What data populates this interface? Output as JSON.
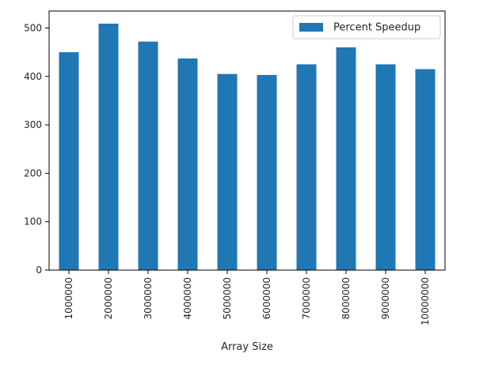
{
  "chart_data": {
    "type": "bar",
    "categories": [
      "1000000",
      "2000000",
      "3000000",
      "4000000",
      "5000000",
      "6000000",
      "7000000",
      "8000000",
      "9000000",
      "10000000"
    ],
    "series": [
      {
        "name": "Percent Speedup",
        "values": [
          450,
          509,
          472,
          437,
          405,
          403,
          425,
          460,
          425,
          415
        ]
      }
    ],
    "xlabel": "Array Size",
    "ylabel": "",
    "ylim": [
      0,
      535
    ],
    "yticks": [
      0,
      100,
      200,
      300,
      400,
      500
    ],
    "bar_color": "#1f77b4",
    "legend_position": "top-right",
    "grid": false
  }
}
